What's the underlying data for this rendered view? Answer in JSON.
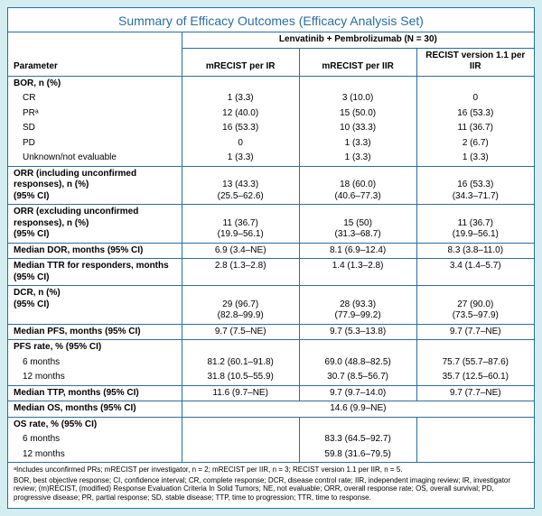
{
  "title": "Summary of Efficacy Outcomes (Efficacy Analysis Set)",
  "arm_header": "Lenvatinib + Pembrolizumab (N = 30)",
  "param_label": "Parameter",
  "cols": {
    "c1": "mRECIST per IR",
    "c2": "mRECIST per IIR",
    "c3": "RECIST version 1.1 per IIR"
  },
  "sections": [
    {
      "type": "group",
      "label": "BOR, n (%)",
      "rows": [
        {
          "l": "CR",
          "v": [
            "1 (3.3)",
            "3 (10.0)",
            "0"
          ]
        },
        {
          "l": "PRᵃ",
          "v": [
            "12 (40.0)",
            "15 (50.0)",
            "16 (53.3)"
          ]
        },
        {
          "l": "SD",
          "v": [
            "16 (53.3)",
            "10 (33.3)",
            "11 (36.7)"
          ]
        },
        {
          "l": "PD",
          "v": [
            "0",
            "1 (3.3)",
            "2 (6.7)"
          ]
        },
        {
          "l": "Unknown/not evaluable",
          "v": [
            "1 (3.3)",
            "1 (3.3)",
            "1 (3.3)"
          ]
        }
      ]
    },
    {
      "type": "block",
      "lines": [
        "ORR (including unconfirmed responses), n (%)",
        "(95% CI)"
      ],
      "v": [
        [
          "13 (43.3)",
          "(25.5–62.6)"
        ],
        [
          "18 (60.0)",
          "(40.6–77.3)"
        ],
        [
          "16 (53.3)",
          "(34.3–71.7)"
        ]
      ]
    },
    {
      "type": "block",
      "lines": [
        "ORR (excluding unconfirmed responses), n (%)",
        "(95% CI)"
      ],
      "v": [
        [
          "11 (36.7)",
          "(19.9–56.1)"
        ],
        [
          "15 (50)",
          "(31.3–68.7)"
        ],
        [
          "11 (36.7)",
          "(19.9–56.1)"
        ]
      ]
    },
    {
      "type": "row",
      "l": "Median DOR, months (95% CI)",
      "v": [
        "6.9 (3.4–NE)",
        "8.1 (6.9–12.4)",
        "8.3 (3.8–11.0)"
      ]
    },
    {
      "type": "row",
      "l": "Median TTR for responders, months (95% CI)",
      "v": [
        "2.8 (1.3–2.8)",
        "1.4 (1.3–2.8)",
        "3.4 (1.4–5.7)"
      ]
    },
    {
      "type": "block",
      "lines": [
        "DCR, n (%)",
        "(95% CI)"
      ],
      "v": [
        [
          "29 (96.7)",
          "(82.8–99.9)"
        ],
        [
          "28 (93.3)",
          "(77.9–99.2)"
        ],
        [
          "27 (90.0)",
          "(73.5–97.9)"
        ]
      ]
    },
    {
      "type": "row",
      "l": "Median PFS, months (95% CI)",
      "v": [
        "9.7 (7.5–NE)",
        "9.7 (5.3–13.8)",
        "9.7 (7.7–NE)"
      ]
    },
    {
      "type": "group",
      "label": "PFS rate, % (95% CI)",
      "rows": [
        {
          "l": "6 months",
          "v": [
            "81.2 (60.1–91.8)",
            "69.0 (48.8–82.5)",
            "75.7 (55.7–87.6)"
          ]
        },
        {
          "l": "12 months",
          "v": [
            "31.8 (10.5–55.9)",
            "30.7 (8.5–56.7)",
            "35.7 (12.5–60.1)"
          ]
        }
      ]
    },
    {
      "type": "row",
      "l": "Median TTP, months (95% CI)",
      "v": [
        "11.6 (9.7–NE)",
        "9.7 (9.7–14.0)",
        "9.7 (7.7–NE)"
      ]
    },
    {
      "type": "span",
      "l": "Median OS, months (95% CI)",
      "value": "14.6 (9.9–NE)"
    },
    {
      "type": "group",
      "label": "OS rate, % (95% CI)",
      "rows": [
        {
          "l": "6 months",
          "v": [
            "",
            "83.3 (64.5–92.7)",
            ""
          ]
        },
        {
          "l": "12 months",
          "v": [
            "",
            "59.8 (31.6–79.5)",
            ""
          ]
        }
      ]
    }
  ],
  "footnotes": [
    "ᵃIncludes unconfirmed PRs; mRECIST per investigator, n = 2; mRECIST per IIR, n = 3; RECIST version 1.1 per IIR, n = 5.",
    "BOR, best objective response; CI, confidence interval; CR, complete response; DCR, disease control rate; IIR, independent imaging review; IR, investigator review; (m)RECIST, (modified) Response Evaluation Criteria In Solid Tumors; NE, not evaluable; ORR, overall response rate; OS, overall survival; PD, progressive disease; PR, partial response; SD, stable disease; TTP, time to progression; TTR, time to response."
  ]
}
